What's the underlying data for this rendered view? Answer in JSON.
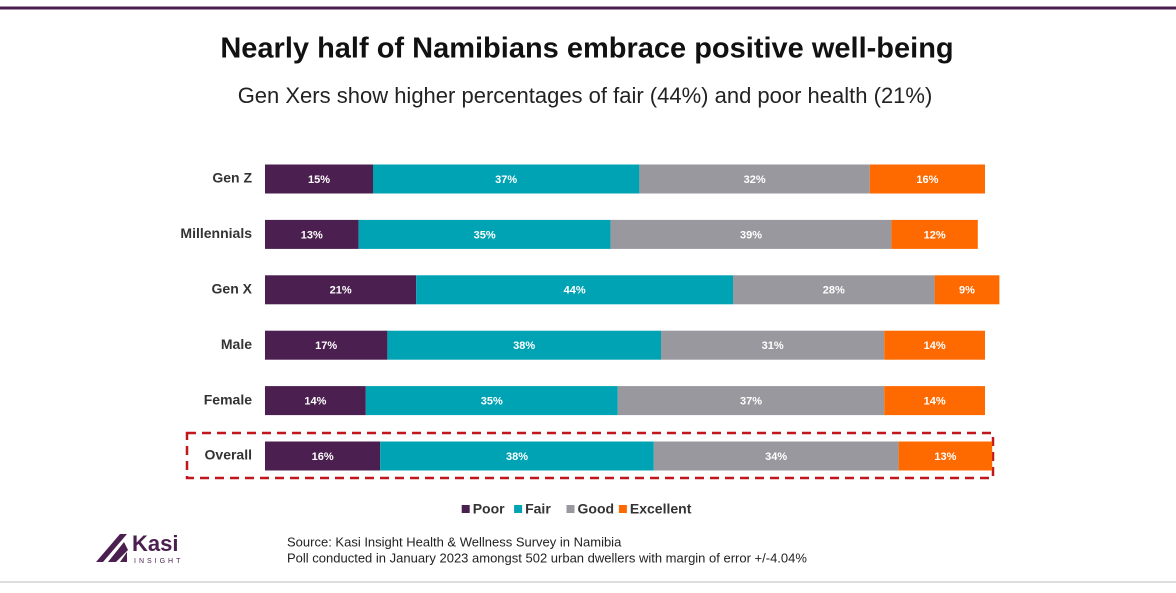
{
  "chart_data": {
    "type": "stacked-barh",
    "title": "Nearly half of Namibians embrace positive well-being",
    "subtitle": "Gen Xers show higher percentages of fair (44%) and poor health (21%)",
    "categories": [
      "Gen Z",
      "Millennials",
      "Gen X",
      "Male",
      "Female",
      "Overall"
    ],
    "series": [
      {
        "name": "Poor",
        "color": "#4b1f4f",
        "values": [
          15,
          13,
          21,
          17,
          14,
          16
        ],
        "value_labels": [
          "15%",
          "13%",
          "21%",
          "17%",
          "14%",
          "16%"
        ]
      },
      {
        "name": "Fair",
        "color": "#00a3b3",
        "values": [
          37,
          35,
          44,
          38,
          35,
          38
        ],
        "value_labels": [
          "37%",
          "35%",
          "44%",
          "38%",
          "35%",
          "38%"
        ]
      },
      {
        "name": "Good",
        "color": "#99989e",
        "values": [
          32,
          39,
          28,
          31,
          37,
          34
        ],
        "value_labels": [
          "32%",
          "39%",
          "28%",
          "31%",
          "37%",
          "34%"
        ]
      },
      {
        "name": "Excellent",
        "color": "#ff6a00",
        "values": [
          16,
          12,
          9,
          14,
          14,
          13
        ],
        "value_labels": [
          "16%",
          "12%",
          "9%",
          "14%",
          "14%",
          "13%"
        ]
      }
    ],
    "xlim": [
      0,
      100
    ],
    "legend": "bottom"
  },
  "source": [
    "Source: Kasi Insight Health & Wellness Survey in Namibia",
    "Poll conducted  in January 2023 amongst 502 urban dwellers with margin of error +/-4.04%"
  ],
  "logo": {
    "name": "Kasi",
    "tagline": "INSIGHT"
  }
}
